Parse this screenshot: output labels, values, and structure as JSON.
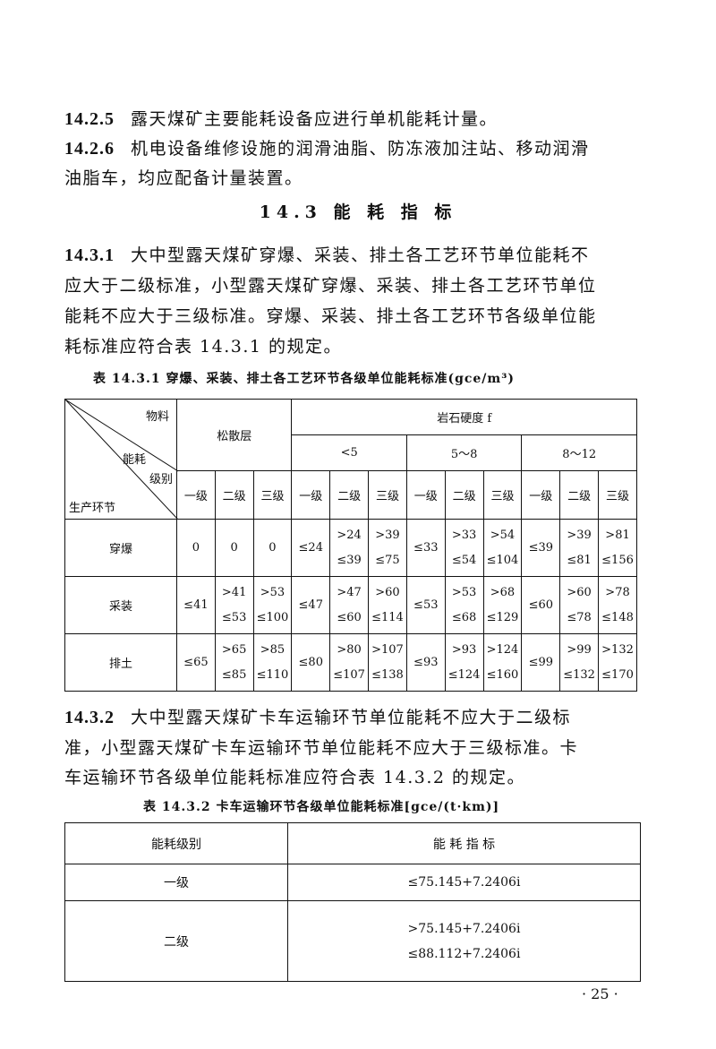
{
  "clauses": [
    {
      "num": "14.2.5",
      "lines": [
        "露天煤矿主要能耗设备应进行单机能耗计量。"
      ]
    },
    {
      "num": "14.2.6",
      "lines": [
        "机电设备维修设施的润滑油脂、防冻液加注站、移动润滑",
        "油脂车，均应配备计量装置。"
      ]
    }
  ],
  "section_heading": "14.3  能 耗 指 标",
  "clause_1431": {
    "num": "14.3.1",
    "lines": [
      "大中型露天煤矿穿爆、采装、排土各工艺环节单位能耗不",
      "应大于二级标准，小型露天煤矿穿爆、采装、排土各工艺环节单位",
      "能耗不应大于三级标准。穿爆、采装、排土各工艺环节各级单位能",
      "耗标准应符合表 14.3.1 的规定。"
    ]
  },
  "table1": {
    "caption": "表 14.3.1   穿爆、采装、排土各工艺环节各级单位能耗标准(gce/m³)",
    "corner": {
      "material": "物料",
      "energy": "能耗",
      "grade": "级别",
      "process": "生产环节"
    },
    "loose": "松散层",
    "rock": "岩石硬度 f",
    "ranges": [
      "<5",
      "5～8",
      "8～12"
    ],
    "grades": [
      "一级",
      "二级",
      "三级",
      "一级",
      "二级",
      "三级",
      "一级",
      "二级",
      "三级",
      "一级",
      "二级",
      "三级"
    ],
    "rows": [
      {
        "name": "穿爆",
        "cells": [
          [
            "0"
          ],
          [
            "0"
          ],
          [
            "0"
          ],
          [
            "≤24"
          ],
          [
            ">24",
            "≤39"
          ],
          [
            ">39",
            "≤75"
          ],
          [
            "≤33"
          ],
          [
            ">33",
            "≤54"
          ],
          [
            ">54",
            "≤104"
          ],
          [
            "≤39"
          ],
          [
            ">39",
            "≤81"
          ],
          [
            ">81",
            "≤156"
          ]
        ]
      },
      {
        "name": "采装",
        "cells": [
          [
            "≤41"
          ],
          [
            ">41",
            "≤53"
          ],
          [
            ">53",
            "≤100"
          ],
          [
            "≤47"
          ],
          [
            ">47",
            "≤60"
          ],
          [
            ">60",
            "≤114"
          ],
          [
            "≤53"
          ],
          [
            ">53",
            "≤68"
          ],
          [
            ">68",
            "≤129"
          ],
          [
            "≤60"
          ],
          [
            ">60",
            "≤78"
          ],
          [
            ">78",
            "≤148"
          ]
        ]
      },
      {
        "name": "排土",
        "cells": [
          [
            "≤65"
          ],
          [
            ">65",
            "≤85"
          ],
          [
            ">85",
            "≤110"
          ],
          [
            "≤80"
          ],
          [
            ">80",
            "≤107"
          ],
          [
            ">107",
            "≤138"
          ],
          [
            "≤93"
          ],
          [
            ">93",
            "≤124"
          ],
          [
            ">124",
            "≤160"
          ],
          [
            "≤99"
          ],
          [
            ">99",
            "≤132"
          ],
          [
            ">132",
            "≤170"
          ]
        ]
      }
    ]
  },
  "clause_1432": {
    "num": "14.3.2",
    "lines": [
      "大中型露天煤矿卡车运输环节单位能耗不应大于二级标",
      "准，小型露天煤矿卡车运输环节单位能耗不应大于三级标准。卡",
      "车运输环节各级单位能耗标准应符合表 14.3.2 的规定。"
    ]
  },
  "table2": {
    "caption": "表 14.3.2   卡车运输环节各级单位能耗标准[gce/(t·km)]",
    "headers": [
      "能耗级别",
      "能 耗 指 标"
    ],
    "rows": [
      {
        "grade": "一级",
        "values": [
          "≤75.145+7.2406i"
        ]
      },
      {
        "grade": "二级",
        "values": [
          ">75.145+7.2406i",
          "≤88.112+7.2406i"
        ]
      }
    ]
  },
  "page_number": "· 25 ·"
}
